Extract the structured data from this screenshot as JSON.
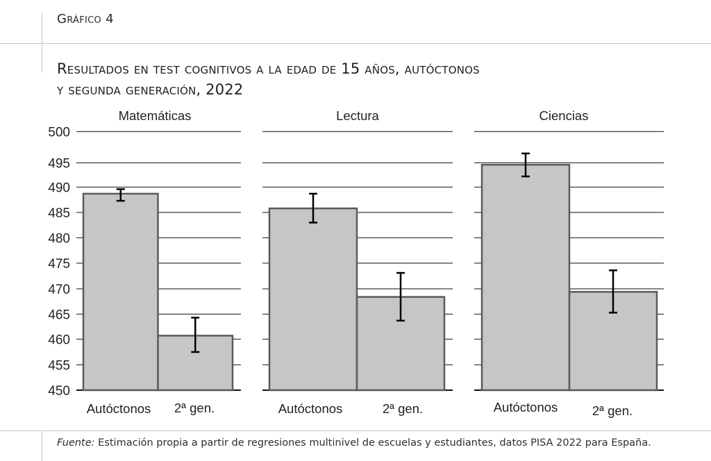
{
  "figure_label": "Gráfico 4",
  "title_line1": "Resultados en test cognitivos a la edad de 15 años, autóctonos",
  "title_line2": "y segunda generación, 2022",
  "source_prefix": "Fuente:",
  "source_text": " Estimación propia a partir de regresiones multinivel de escuelas y estudiantes, datos PISA 2022 para España.",
  "chart_data": {
    "type": "bar",
    "title": "Resultados en test cognitivos a la edad de 15 años, autóctonos y segunda generación, 2022",
    "xlabel": "",
    "ylabel": "",
    "ylim": [
      450,
      500
    ],
    "yticks": [
      450,
      455,
      460,
      465,
      470,
      475,
      480,
      485,
      490,
      495,
      500
    ],
    "grid": true,
    "bar_color": "#c6c6c6",
    "bar_edge_color": "#5a5a5a",
    "panels": [
      {
        "title": "Matemáticas",
        "categories": [
          "Autóctonos",
          "2ª gen."
        ],
        "values": [
          488.7,
          460.7
        ],
        "error_low": [
          487.3,
          457.5
        ],
        "error_high": [
          489.6,
          464.3
        ]
      },
      {
        "title": "Lectura",
        "categories": [
          "Autóctonos",
          "2ª gen."
        ],
        "values": [
          485.8,
          468.4
        ],
        "error_low": [
          483.0,
          463.7
        ],
        "error_high": [
          488.7,
          473.1
        ]
      },
      {
        "title": "Ciencias",
        "categories": [
          "Autóctonos",
          "2ª gen."
        ],
        "values": [
          494.6,
          469.4
        ],
        "error_low": [
          492.2,
          465.3
        ],
        "error_high": [
          496.5,
          473.6
        ]
      }
    ]
  }
}
